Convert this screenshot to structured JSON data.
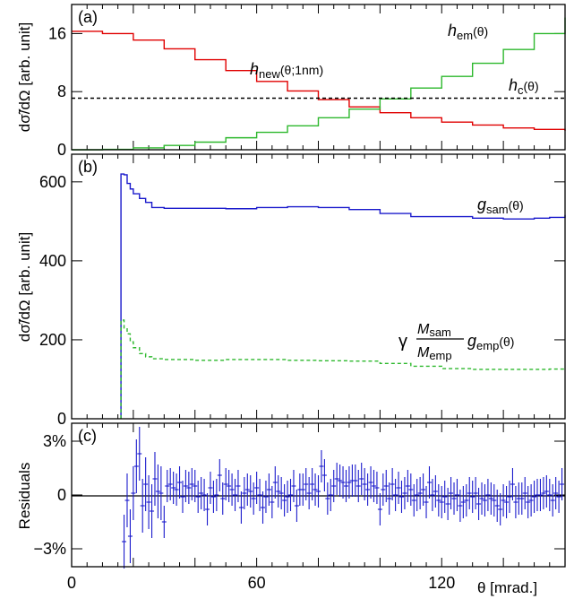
{
  "figure": {
    "x_axis_title": "θ [mrad.]"
  },
  "chart_data": [
    {
      "panel": "(a)",
      "type": "line",
      "ylabel": "dσ̃/dΩ  [arb. unit]",
      "xlim": [
        0,
        160
      ],
      "ylim": [
        0,
        20
      ],
      "x_ticks": [
        0,
        60,
        120
      ],
      "y_ticks": [
        0,
        8,
        16
      ],
      "x": [
        0,
        10,
        20,
        30,
        40,
        50,
        60,
        70,
        80,
        90,
        100,
        110,
        120,
        130,
        140,
        150,
        160
      ],
      "series": [
        {
          "name": "h_new(θ;1nm)",
          "color": "#e00000",
          "values": [
            16.3,
            16.0,
            15.1,
            13.9,
            12.4,
            10.9,
            9.4,
            8.1,
            6.9,
            5.9,
            5.1,
            4.4,
            3.8,
            3.4,
            3.0,
            2.8,
            2.6
          ]
        },
        {
          "name": "h_em(θ)",
          "color": "#2db82d",
          "values": [
            0.0,
            0.06,
            0.25,
            0.6,
            1.05,
            1.65,
            2.4,
            3.3,
            4.4,
            5.6,
            7.0,
            8.5,
            10.1,
            11.9,
            13.8,
            16.0,
            18.2
          ]
        },
        {
          "name": "h_c(θ)",
          "color": "#000000",
          "dashed": true,
          "values": [
            7.1,
            7.1,
            7.1,
            7.1,
            7.1,
            7.1,
            7.1,
            7.1,
            7.1,
            7.1,
            7.1,
            7.1,
            7.1,
            7.1,
            7.1,
            7.1,
            7.1
          ]
        }
      ],
      "annotations": {
        "panel_label": "(a)",
        "h_new_main": "h",
        "h_new_sub": "new",
        "h_new_arg": "(θ;1nm)",
        "h_em_main": "h",
        "h_em_sub": "em",
        "h_em_arg": "(θ)",
        "h_c_main": "h",
        "h_c_sub": "c",
        "h_c_arg": "(θ)"
      }
    },
    {
      "panel": "(b)",
      "type": "line",
      "ylabel": "dσ̃/dΩ  [arb. unit]",
      "xlim": [
        0,
        160
      ],
      "ylim": [
        0,
        670
      ],
      "y_ticks": [
        0,
        200,
        400,
        600
      ],
      "x": [
        16,
        17,
        18,
        19,
        20,
        22,
        24,
        26,
        30,
        40,
        50,
        60,
        70,
        80,
        90,
        100,
        110,
        120,
        130,
        140,
        150,
        155,
        160
      ],
      "series": [
        {
          "name": "g_sam(θ)",
          "color": "#1a1acc",
          "values": [
            620,
            618,
            596,
            582,
            570,
            558,
            548,
            535,
            533,
            533,
            532,
            535,
            537,
            535,
            530,
            520,
            512,
            512,
            508,
            506,
            508,
            510,
            516
          ]
        },
        {
          "name": "γ (M_sam/M_emp) g_emp(θ)",
          "color": "#2db82d",
          "dashed": true,
          "values": [
            250,
            230,
            215,
            195,
            180,
            165,
            157,
            152,
            150,
            148,
            150,
            150,
            148,
            147,
            146,
            140,
            133,
            127,
            125,
            125,
            125,
            126,
            128
          ]
        }
      ],
      "annotations": {
        "panel_label": "(b)",
        "g_sam_main": "g",
        "g_sam_sub": "sam",
        "g_sam_arg": "(θ)",
        "gamma": "γ",
        "frac_num_main": "M",
        "frac_num_sub": "sam",
        "frac_den_main": "M",
        "frac_den_sub": "emp",
        "g_emp_main": "g",
        "g_emp_sub": "emp",
        "g_emp_arg": "(θ)"
      }
    },
    {
      "panel": "(c)",
      "type": "scatter",
      "ylabel": "Residuals",
      "xlim": [
        0,
        160
      ],
      "ylim": [
        -4,
        4
      ],
      "y_ticks": [
        -3,
        0,
        3
      ],
      "y_tick_labels": [
        "−3%",
        "0",
        "3%"
      ],
      "x_ticks": [
        0,
        60,
        120
      ],
      "x": [
        17,
        18,
        19,
        20,
        21,
        22,
        23,
        24,
        25,
        26,
        27,
        28,
        29,
        30,
        31,
        32,
        33,
        34,
        35,
        36,
        37,
        38,
        39,
        40,
        41,
        42,
        43,
        44,
        45,
        46,
        47,
        48,
        49,
        50,
        51,
        52,
        53,
        54,
        55,
        56,
        57,
        58,
        59,
        60,
        61,
        62,
        63,
        64,
        65,
        66,
        67,
        68,
        69,
        70,
        71,
        72,
        73,
        74,
        75,
        76,
        77,
        78,
        79,
        80,
        81,
        82,
        83,
        84,
        85,
        86,
        87,
        88,
        89,
        90,
        91,
        92,
        93,
        94,
        95,
        96,
        97,
        98,
        99,
        100,
        101,
        102,
        103,
        104,
        105,
        106,
        107,
        108,
        109,
        110,
        111,
        112,
        113,
        114,
        115,
        116,
        117,
        118,
        119,
        120,
        121,
        122,
        123,
        124,
        125,
        126,
        127,
        128,
        129,
        130,
        131,
        132,
        133,
        134,
        135,
        136,
        137,
        138,
        139,
        140,
        141,
        142,
        143,
        144,
        145,
        146,
        147,
        148,
        149,
        150,
        151,
        152,
        153,
        154,
        155,
        156,
        157,
        158,
        159
      ],
      "values": [
        -2.6,
        -0.3,
        -2.3,
        0.1,
        1.6,
        2.3,
        -0.6,
        0.6,
        -0.4,
        -0.9,
        0.9,
        0.2,
        0.1,
        -1.5,
        0.5,
        0.6,
        0.4,
        0.3,
        0.7,
        -0.1,
        0.5,
        0.4,
        0.6,
        0.5,
        -0.1,
        0.1,
        0.0,
        -0.8,
        0.4,
        -0.1,
        0.0,
        1.1,
        -0.2,
        0.6,
        0.5,
        0.3,
        0.0,
        0.5,
        -0.7,
        0.1,
        0.3,
        0.2,
        -0.2,
        0.4,
        0.0,
        -0.7,
        -0.1,
        0.3,
        -0.4,
        0.7,
        0.2,
        0.1,
        -0.3,
        -0.1,
        0.0,
        0.5,
        -0.6,
        0.3,
        0.3,
        0.6,
        0.1,
        0.6,
        0.3,
        0.2,
        1.6,
        1.1,
        -0.2,
        0.0,
        0.5,
        0.9,
        0.8,
        0.7,
        0.5,
        0.7,
        0.8,
        0.8,
        0.5,
        0.9,
        0.6,
        0.3,
        0.7,
        0.5,
        0.4,
        -0.8,
        0.3,
        0.5,
        -0.2,
        0.6,
        0.0,
        0.4,
        -0.1,
        0.1,
        0.5,
        0.3,
        -0.3,
        0.0,
        0.1,
        0.3,
        -0.4,
        0.7,
        0.0,
        0.2,
        -0.3,
        -0.4,
        -0.1,
        -0.5,
        0.1,
        -0.2,
        0.0,
        -0.6,
        -0.4,
        -0.3,
        0.1,
        -0.1,
        0.1,
        -0.5,
        -0.2,
        -0.3,
        0.0,
        -0.2,
        -0.3,
        -0.6,
        -0.8,
        -0.3,
        -0.4,
        -0.1,
        0.6,
        -0.4,
        -0.2,
        -0.2,
        0.1,
        -0.4,
        -0.3,
        -0.1,
        0.0,
        0.0,
        0.1,
        0.2,
        0.0,
        -0.3,
        0.1,
        -0.1,
        0.6
      ],
      "annotations": {
        "panel_label": "(c)"
      }
    }
  ]
}
